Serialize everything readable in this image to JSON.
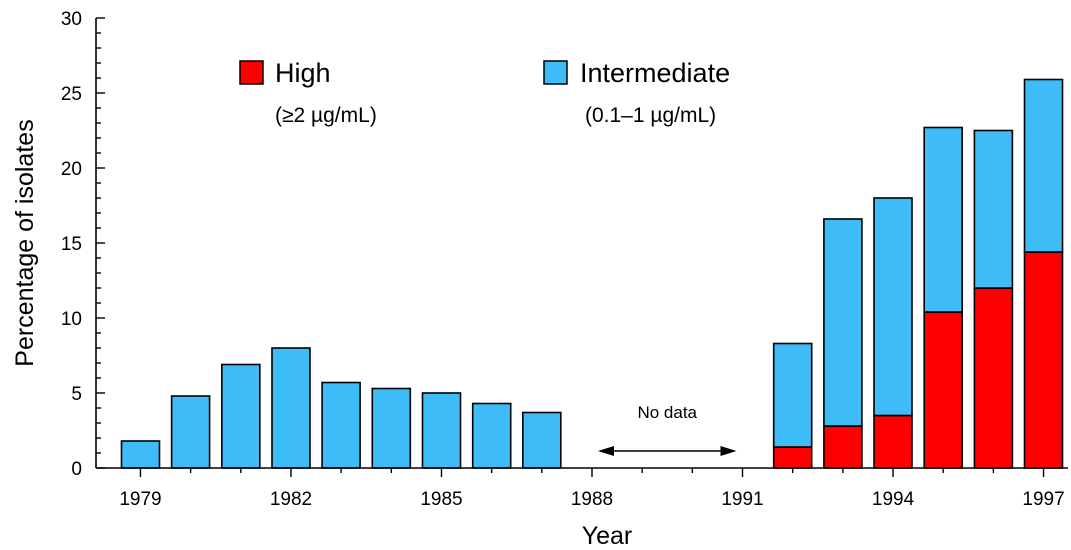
{
  "chart_data": {
    "type": "bar",
    "stacked": true,
    "xlabel": "Year",
    "ylabel": "Percentage of isolates",
    "ylim": [
      0,
      30
    ],
    "yticks": [
      0,
      5,
      10,
      15,
      20,
      25,
      30
    ],
    "xlim": [
      1978.5,
      1997.5
    ],
    "xticks": [
      "1979",
      "1982",
      "1985",
      "1988",
      "1991",
      "1994",
      "1997"
    ],
    "categories": [
      1979,
      1980,
      1981,
      1982,
      1983,
      1984,
      1985,
      1986,
      1987,
      1992,
      1993,
      1994,
      1995,
      1996,
      1997
    ],
    "series": [
      {
        "name": "High",
        "sublabel": "(≥2 µg/mL)",
        "color": "#ff0000",
        "values": [
          0,
          0,
          0,
          0,
          0,
          0,
          0,
          0,
          0,
          1.4,
          2.8,
          3.5,
          10.4,
          12.0,
          14.4
        ]
      },
      {
        "name": "Intermediate",
        "sublabel": "(0.1–1 µg/mL)",
        "color": "#3dbcf7",
        "values": [
          1.8,
          4.8,
          6.9,
          8.0,
          5.7,
          5.3,
          5.0,
          4.3,
          3.7,
          6.9,
          13.8,
          14.5,
          12.3,
          10.5,
          11.5
        ]
      }
    ],
    "annotations": [
      {
        "text": "No data",
        "from": 1988,
        "to": 1991
      }
    ],
    "legend_position": "top",
    "grid": false
  }
}
